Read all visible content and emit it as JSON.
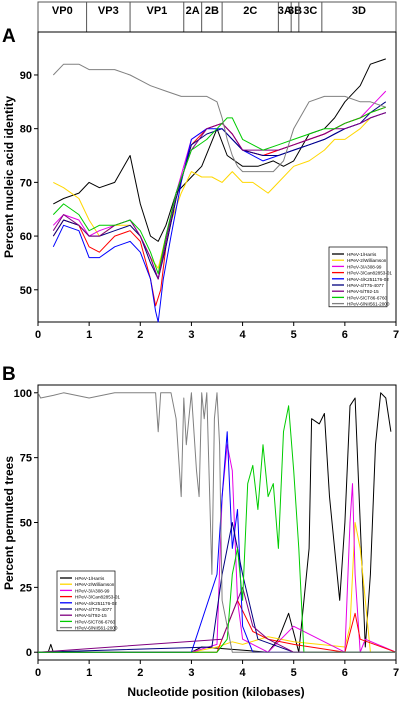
{
  "genome_map": {
    "regions": [
      {
        "label": "VP0",
        "start": 0.0,
        "end": 0.95
      },
      {
        "label": "VP3",
        "start": 0.95,
        "end": 1.8
      },
      {
        "label": "VP1",
        "start": 1.8,
        "end": 2.85
      },
      {
        "label": "2A",
        "start": 2.85,
        "end": 3.2
      },
      {
        "label": "2B",
        "start": 3.2,
        "end": 3.6
      },
      {
        "label": "2C",
        "start": 3.6,
        "end": 4.7
      },
      {
        "label": "3A",
        "start": 4.7,
        "end": 4.95
      },
      {
        "label": "3B",
        "start": 4.95,
        "end": 5.1
      },
      {
        "label": "3C",
        "start": 5.1,
        "end": 5.55
      },
      {
        "label": "3D",
        "start": 5.55,
        "end": 7.0
      }
    ]
  },
  "colors": {
    "HPeV-1/Harris": "#000000",
    "HPeV-2/Williamson": "#ffd700",
    "HPeV-3/A308-99": "#e600e6",
    "HPeV-3/Can82853-01": "#ff0000",
    "HPeV-4/K251176-02": "#0000ff",
    "HPeV-4/T75-4077": "#000080",
    "HPeV-5/T92-15": "#800080",
    "HPeV-5/CT86-6760": "#00cc00",
    "HPeV-6/NII561-2000": "#808080"
  },
  "chart_data": [
    {
      "panel": "A",
      "type": "line",
      "xlabel": "",
      "ylabel": "Percent nucleic acid identity",
      "xlim": [
        0,
        7
      ],
      "ylim": [
        44,
        98
      ],
      "xticks": [
        "0",
        "1",
        "2",
        "3",
        "4",
        "5",
        "6",
        "7"
      ],
      "yticks": [
        "50",
        "60",
        "70",
        "80",
        "90"
      ],
      "legend_position": "bottom-right",
      "series": [
        {
          "name": "HPeV-1/Harris",
          "x": [
            0.3,
            0.5,
            0.8,
            1.0,
            1.2,
            1.5,
            1.8,
            2.0,
            2.2,
            2.35,
            2.5,
            2.7,
            3.0,
            3.2,
            3.5,
            3.7,
            4.0,
            4.3,
            4.6,
            4.8,
            5.0,
            5.3,
            5.6,
            5.8,
            6.0,
            6.3,
            6.5,
            6.8
          ],
          "y": [
            66,
            67,
            68,
            70,
            69,
            70,
            75,
            66,
            60,
            59,
            62,
            68,
            71,
            73,
            80,
            75,
            73,
            73,
            74,
            73,
            74,
            79,
            80,
            82,
            85,
            88,
            92,
            93
          ]
        },
        {
          "name": "HPeV-2/Williamson",
          "x": [
            0.3,
            0.5,
            0.8,
            1.0,
            1.2,
            1.5,
            1.8,
            2.0,
            2.2,
            2.35,
            2.5,
            2.8,
            3.0,
            3.2,
            3.4,
            3.6,
            3.8,
            4.0,
            4.2,
            4.5,
            4.7,
            5.0,
            5.3,
            5.6,
            5.8,
            6.0,
            6.3,
            6.5,
            6.8
          ],
          "y": [
            70,
            69,
            67,
            63,
            60,
            62,
            62,
            60,
            56,
            54,
            60,
            68,
            72,
            71,
            71,
            70,
            72,
            70,
            70,
            68,
            70,
            73,
            74,
            76,
            78,
            78,
            80,
            82,
            83
          ]
        },
        {
          "name": "HPeV-3/A308-99",
          "x": [
            0.3,
            0.5,
            0.8,
            1.0,
            1.2,
            1.5,
            1.8,
            2.0,
            2.2,
            2.35,
            2.5,
            2.7,
            3.0,
            3.3,
            3.6,
            3.8,
            4.0,
            4.4,
            4.7,
            5.0,
            5.3,
            5.6,
            5.8,
            6.0,
            6.3,
            6.5,
            6.8
          ],
          "y": [
            62,
            64,
            63,
            60,
            61,
            62,
            63,
            60,
            56,
            52,
            60,
            68,
            78,
            80,
            81,
            79,
            76,
            75,
            76,
            77,
            78,
            79,
            80,
            81,
            82,
            84,
            87
          ]
        },
        {
          "name": "HPeV-3/Can82853-01",
          "x": [
            0.3,
            0.5,
            0.8,
            1.0,
            1.2,
            1.5,
            1.8,
            2.0,
            2.2,
            2.3,
            2.4,
            2.5,
            2.7,
            3.0,
            3.3,
            3.6,
            3.8,
            4.0,
            4.4,
            4.7,
            5.0,
            5.3,
            5.6,
            5.8,
            6.0,
            6.3,
            6.5,
            6.8
          ],
          "y": [
            60,
            63,
            62,
            58,
            57,
            60,
            61,
            59,
            52,
            47,
            50,
            58,
            67,
            77,
            80,
            81,
            79,
            76,
            75,
            76,
            77,
            78,
            79,
            80,
            81,
            82,
            83,
            84
          ]
        },
        {
          "name": "HPeV-4/K251176-02",
          "x": [
            0.3,
            0.5,
            0.8,
            1.0,
            1.2,
            1.5,
            1.8,
            2.0,
            2.2,
            2.3,
            2.35,
            2.45,
            2.6,
            2.8,
            3.0,
            3.3,
            3.6,
            3.8,
            4.0,
            4.4,
            4.7,
            5.0,
            5.3,
            5.6,
            5.8,
            6.0,
            6.3,
            6.5,
            6.8
          ],
          "y": [
            58,
            62,
            61,
            56,
            56,
            58,
            59,
            57,
            52,
            46,
            44,
            52,
            60,
            70,
            78,
            80,
            80,
            78,
            76,
            74,
            75,
            76,
            77,
            78,
            79,
            80,
            81,
            82,
            83
          ]
        },
        {
          "name": "HPeV-4/T75-4077",
          "x": [
            0.3,
            0.5,
            0.8,
            1.0,
            1.2,
            1.5,
            1.8,
            2.0,
            2.2,
            2.35,
            2.5,
            2.7,
            3.0,
            3.3,
            3.6,
            3.8,
            4.0,
            4.4,
            4.7,
            5.0,
            5.3,
            5.6,
            5.8,
            6.0,
            6.3,
            6.5,
            6.8
          ],
          "y": [
            60,
            63,
            62,
            60,
            60,
            61,
            62,
            60,
            55,
            52,
            58,
            67,
            77,
            79,
            80,
            78,
            76,
            75,
            75,
            76,
            77,
            78,
            79,
            80,
            81,
            83,
            85
          ]
        },
        {
          "name": "HPeV-5/T92-15",
          "x": [
            0.3,
            0.5,
            0.8,
            1.0,
            1.2,
            1.5,
            1.8,
            2.0,
            2.2,
            2.35,
            2.5,
            2.7,
            3.0,
            3.3,
            3.6,
            3.8,
            4.0,
            4.4,
            4.7,
            5.0,
            5.3,
            5.6,
            5.8,
            6.0,
            6.3,
            6.5,
            6.8
          ],
          "y": [
            61,
            64,
            62,
            60,
            60,
            62,
            63,
            60,
            56,
            52,
            59,
            68,
            76,
            80,
            81,
            79,
            76,
            76,
            76,
            77,
            78,
            79,
            80,
            80,
            81,
            82,
            83
          ]
        },
        {
          "name": "HPeV-5/CT86-6760",
          "x": [
            0.3,
            0.5,
            0.8,
            1.0,
            1.2,
            1.5,
            1.8,
            2.0,
            2.2,
            2.35,
            2.5,
            2.7,
            3.0,
            3.3,
            3.5,
            3.7,
            3.8,
            4.0,
            4.4,
            4.7,
            5.0,
            5.3,
            5.6,
            5.8,
            6.0,
            6.3,
            6.5,
            6.8
          ],
          "y": [
            64,
            66,
            64,
            61,
            62,
            62,
            63,
            61,
            57,
            53,
            60,
            68,
            76,
            78,
            80,
            82,
            82,
            78,
            76,
            77,
            78,
            79,
            80,
            80,
            81,
            82,
            83,
            84
          ]
        },
        {
          "name": "HPeV-6/NII561-2000",
          "x": [
            0.3,
            0.5,
            0.8,
            1.0,
            1.2,
            1.5,
            1.8,
            2.0,
            2.2,
            2.5,
            2.8,
            3.0,
            3.3,
            3.5,
            3.6,
            3.7,
            3.8,
            3.9,
            4.0,
            4.3,
            4.6,
            4.8,
            5.0,
            5.3,
            5.6,
            5.8,
            6.0,
            6.3,
            6.5,
            6.8
          ],
          "y": [
            90,
            92,
            92,
            91,
            91,
            91,
            90,
            89,
            88,
            87,
            86,
            86,
            86,
            85,
            82,
            78,
            75,
            73,
            72,
            72,
            72,
            74,
            80,
            85,
            86,
            86,
            86,
            85,
            85,
            84
          ]
        }
      ]
    },
    {
      "panel": "B",
      "type": "line",
      "xlabel": "Nucleotide position (kilobases)",
      "ylabel": "Percent permuted trees",
      "xlim": [
        0,
        7
      ],
      "ylim": [
        -3,
        103
      ],
      "xticks": [
        "0",
        "1",
        "2",
        "3",
        "4",
        "5",
        "6",
        "7"
      ],
      "yticks": [
        "0",
        "25",
        "50",
        "75",
        "100"
      ],
      "legend_position": "bottom-left",
      "series": [
        {
          "name": "HPeV-1/Harris",
          "x": [
            0.0,
            0.2,
            0.25,
            0.3,
            3.0,
            3.2,
            4.5,
            4.7,
            4.9,
            5.1,
            5.3,
            5.35,
            5.5,
            5.6,
            5.7,
            5.9,
            6.0,
            6.1,
            6.2,
            6.4,
            6.5,
            6.6,
            6.7,
            6.8,
            6.9
          ],
          "y": [
            0,
            0,
            3,
            0,
            0,
            2,
            0,
            5,
            15,
            0,
            40,
            90,
            88,
            92,
            60,
            20,
            50,
            95,
            98,
            2,
            30,
            80,
            100,
            98,
            85
          ]
        },
        {
          "name": "HPeV-2/Williamson",
          "x": [
            0.0,
            3.0,
            3.5,
            3.8,
            4.0,
            4.5,
            5.0,
            6.0,
            6.1,
            6.2,
            6.3,
            6.5,
            7.0
          ],
          "y": [
            0,
            0,
            2,
            4,
            3,
            6,
            4,
            2,
            10,
            50,
            40,
            0,
            0
          ]
        },
        {
          "name": "HPeV-3/A308-99",
          "x": [
            0.0,
            3.0,
            3.5,
            3.6,
            3.7,
            3.8,
            3.9,
            4.0,
            4.5,
            5.0,
            6.0,
            6.1,
            6.15,
            6.2,
            6.3,
            6.4,
            7.0
          ],
          "y": [
            0,
            0,
            3,
            60,
            80,
            70,
            20,
            5,
            0,
            10,
            0,
            50,
            65,
            30,
            0,
            5,
            0
          ]
        },
        {
          "name": "HPeV-3/Can82853-01",
          "x": [
            0.0,
            3.5,
            3.7,
            3.9,
            4.2,
            4.5,
            5.0,
            6.0,
            6.2,
            6.3,
            7.0
          ],
          "y": [
            0,
            0,
            10,
            20,
            8,
            5,
            3,
            0,
            15,
            5,
            0
          ]
        },
        {
          "name": "HPeV-4/K251176-02",
          "x": [
            0.0,
            3.0,
            3.5,
            3.6,
            3.7,
            3.8,
            3.9,
            4.0,
            4.2,
            5.0,
            7.0
          ],
          "y": [
            0,
            0,
            30,
            60,
            85,
            40,
            55,
            10,
            0,
            0,
            0
          ]
        },
        {
          "name": "HPeV-4/T75-4077",
          "x": [
            0.0,
            3.4,
            3.6,
            3.8,
            4.0,
            4.3,
            5.0,
            7.0
          ],
          "y": [
            0,
            2,
            30,
            50,
            30,
            5,
            0,
            0
          ]
        },
        {
          "name": "HPeV-5/T92-15",
          "x": [
            0.0,
            3.6,
            3.8,
            4.0,
            4.2,
            4.5,
            5.0,
            7.0
          ],
          "y": [
            0,
            5,
            15,
            25,
            10,
            5,
            0,
            0
          ]
        },
        {
          "name": "HPeV-5/CT86-6760",
          "x": [
            0.0,
            3.5,
            3.7,
            3.8,
            3.9,
            4.0,
            4.1,
            4.2,
            4.3,
            4.4,
            4.5,
            4.6,
            4.7,
            4.8,
            4.9,
            5.0,
            5.1,
            5.2,
            7.0
          ],
          "y": [
            0,
            0,
            5,
            30,
            40,
            20,
            65,
            72,
            55,
            80,
            60,
            65,
            40,
            85,
            95,
            70,
            40,
            0,
            0
          ]
        },
        {
          "name": "HPeV-6/NII561-2000",
          "x": [
            0.0,
            0.05,
            0.3,
            0.5,
            1.0,
            1.5,
            2.0,
            2.3,
            2.35,
            2.4,
            2.6,
            2.7,
            2.8,
            2.85,
            2.9,
            3.0,
            3.1,
            3.15,
            3.2,
            3.25,
            3.3,
            3.4,
            3.45,
            3.5,
            3.55,
            3.6,
            3.7,
            3.8,
            4.0,
            7.0
          ],
          "y": [
            100,
            98,
            99,
            100,
            98,
            100,
            100,
            100,
            85,
            100,
            100,
            90,
            60,
            98,
            80,
            100,
            70,
            60,
            100,
            90,
            100,
            30,
            90,
            100,
            80,
            20,
            10,
            0,
            0,
            0
          ]
        }
      ]
    }
  ],
  "panel_labels": {
    "a": "A",
    "b": "B"
  }
}
